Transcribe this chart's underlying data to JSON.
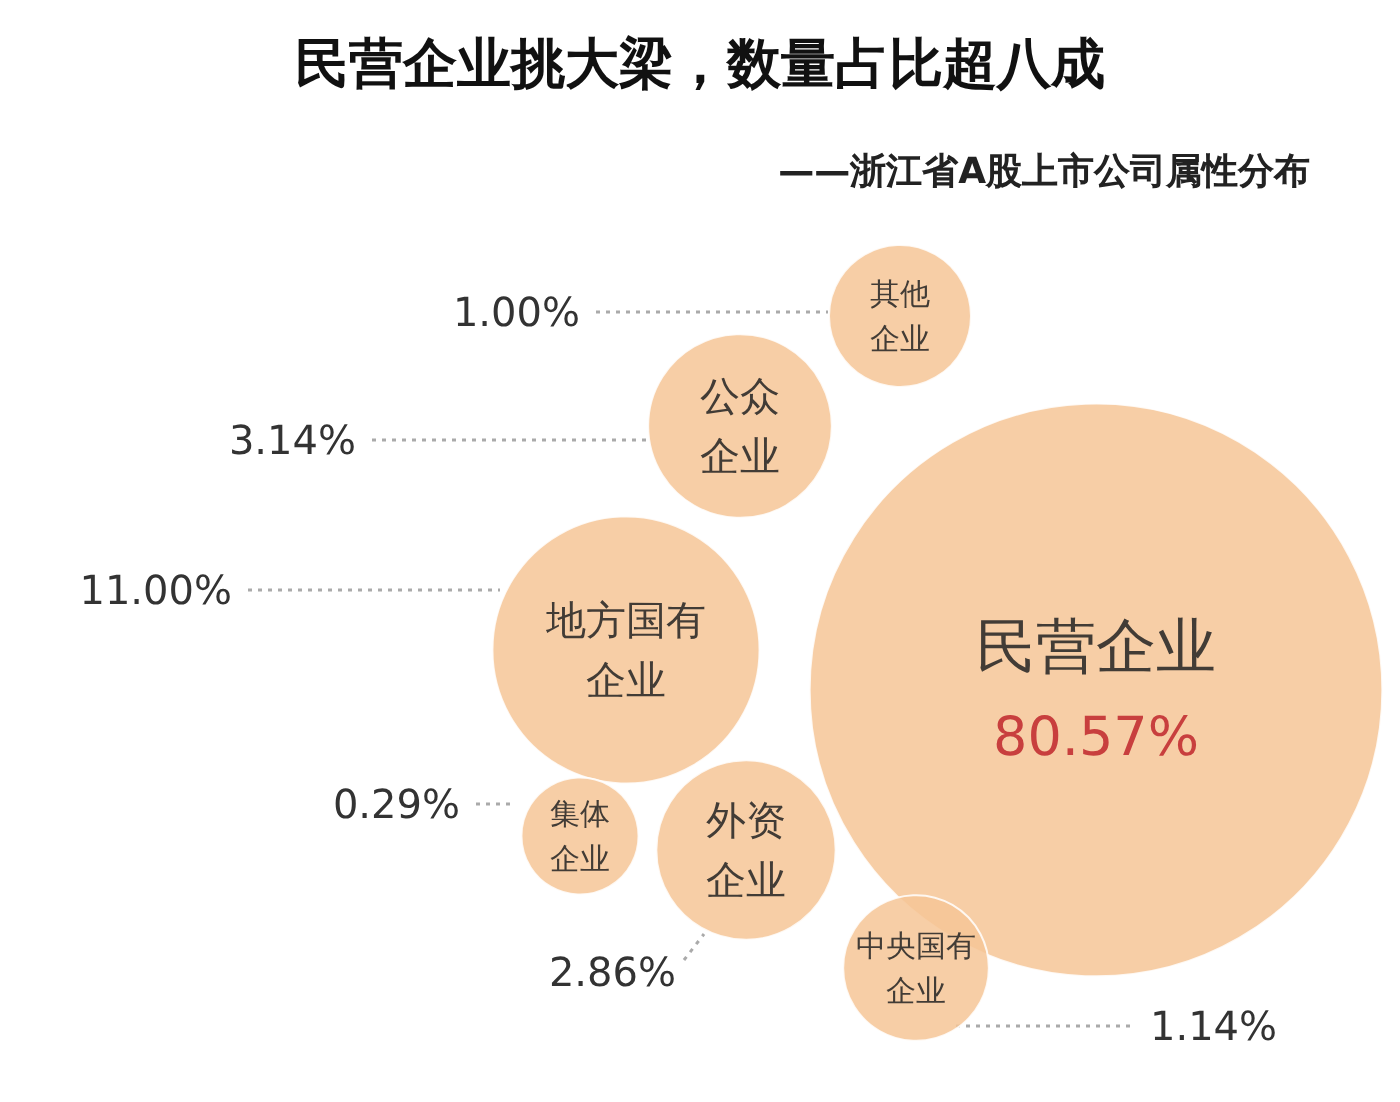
{
  "chart_data": {
    "type": "other",
    "title": "民营企业挑大梁，数量占比超八成",
    "subtitle": "——浙江省A股上市公司属性分布",
    "categories": [
      "民营企业",
      "地方国有企业",
      "公众企业",
      "外资企业",
      "中央国有企业",
      "其他企业",
      "集体企业"
    ],
    "values": [
      80.57,
      11.0,
      3.14,
      2.86,
      1.14,
      1.0,
      0.29
    ],
    "value_labels": [
      "80.57%",
      "11.00%",
      "3.14%",
      "2.86%",
      "1.14%",
      "1.00%",
      "0.29%"
    ],
    "color": "#f6c596"
  }
}
